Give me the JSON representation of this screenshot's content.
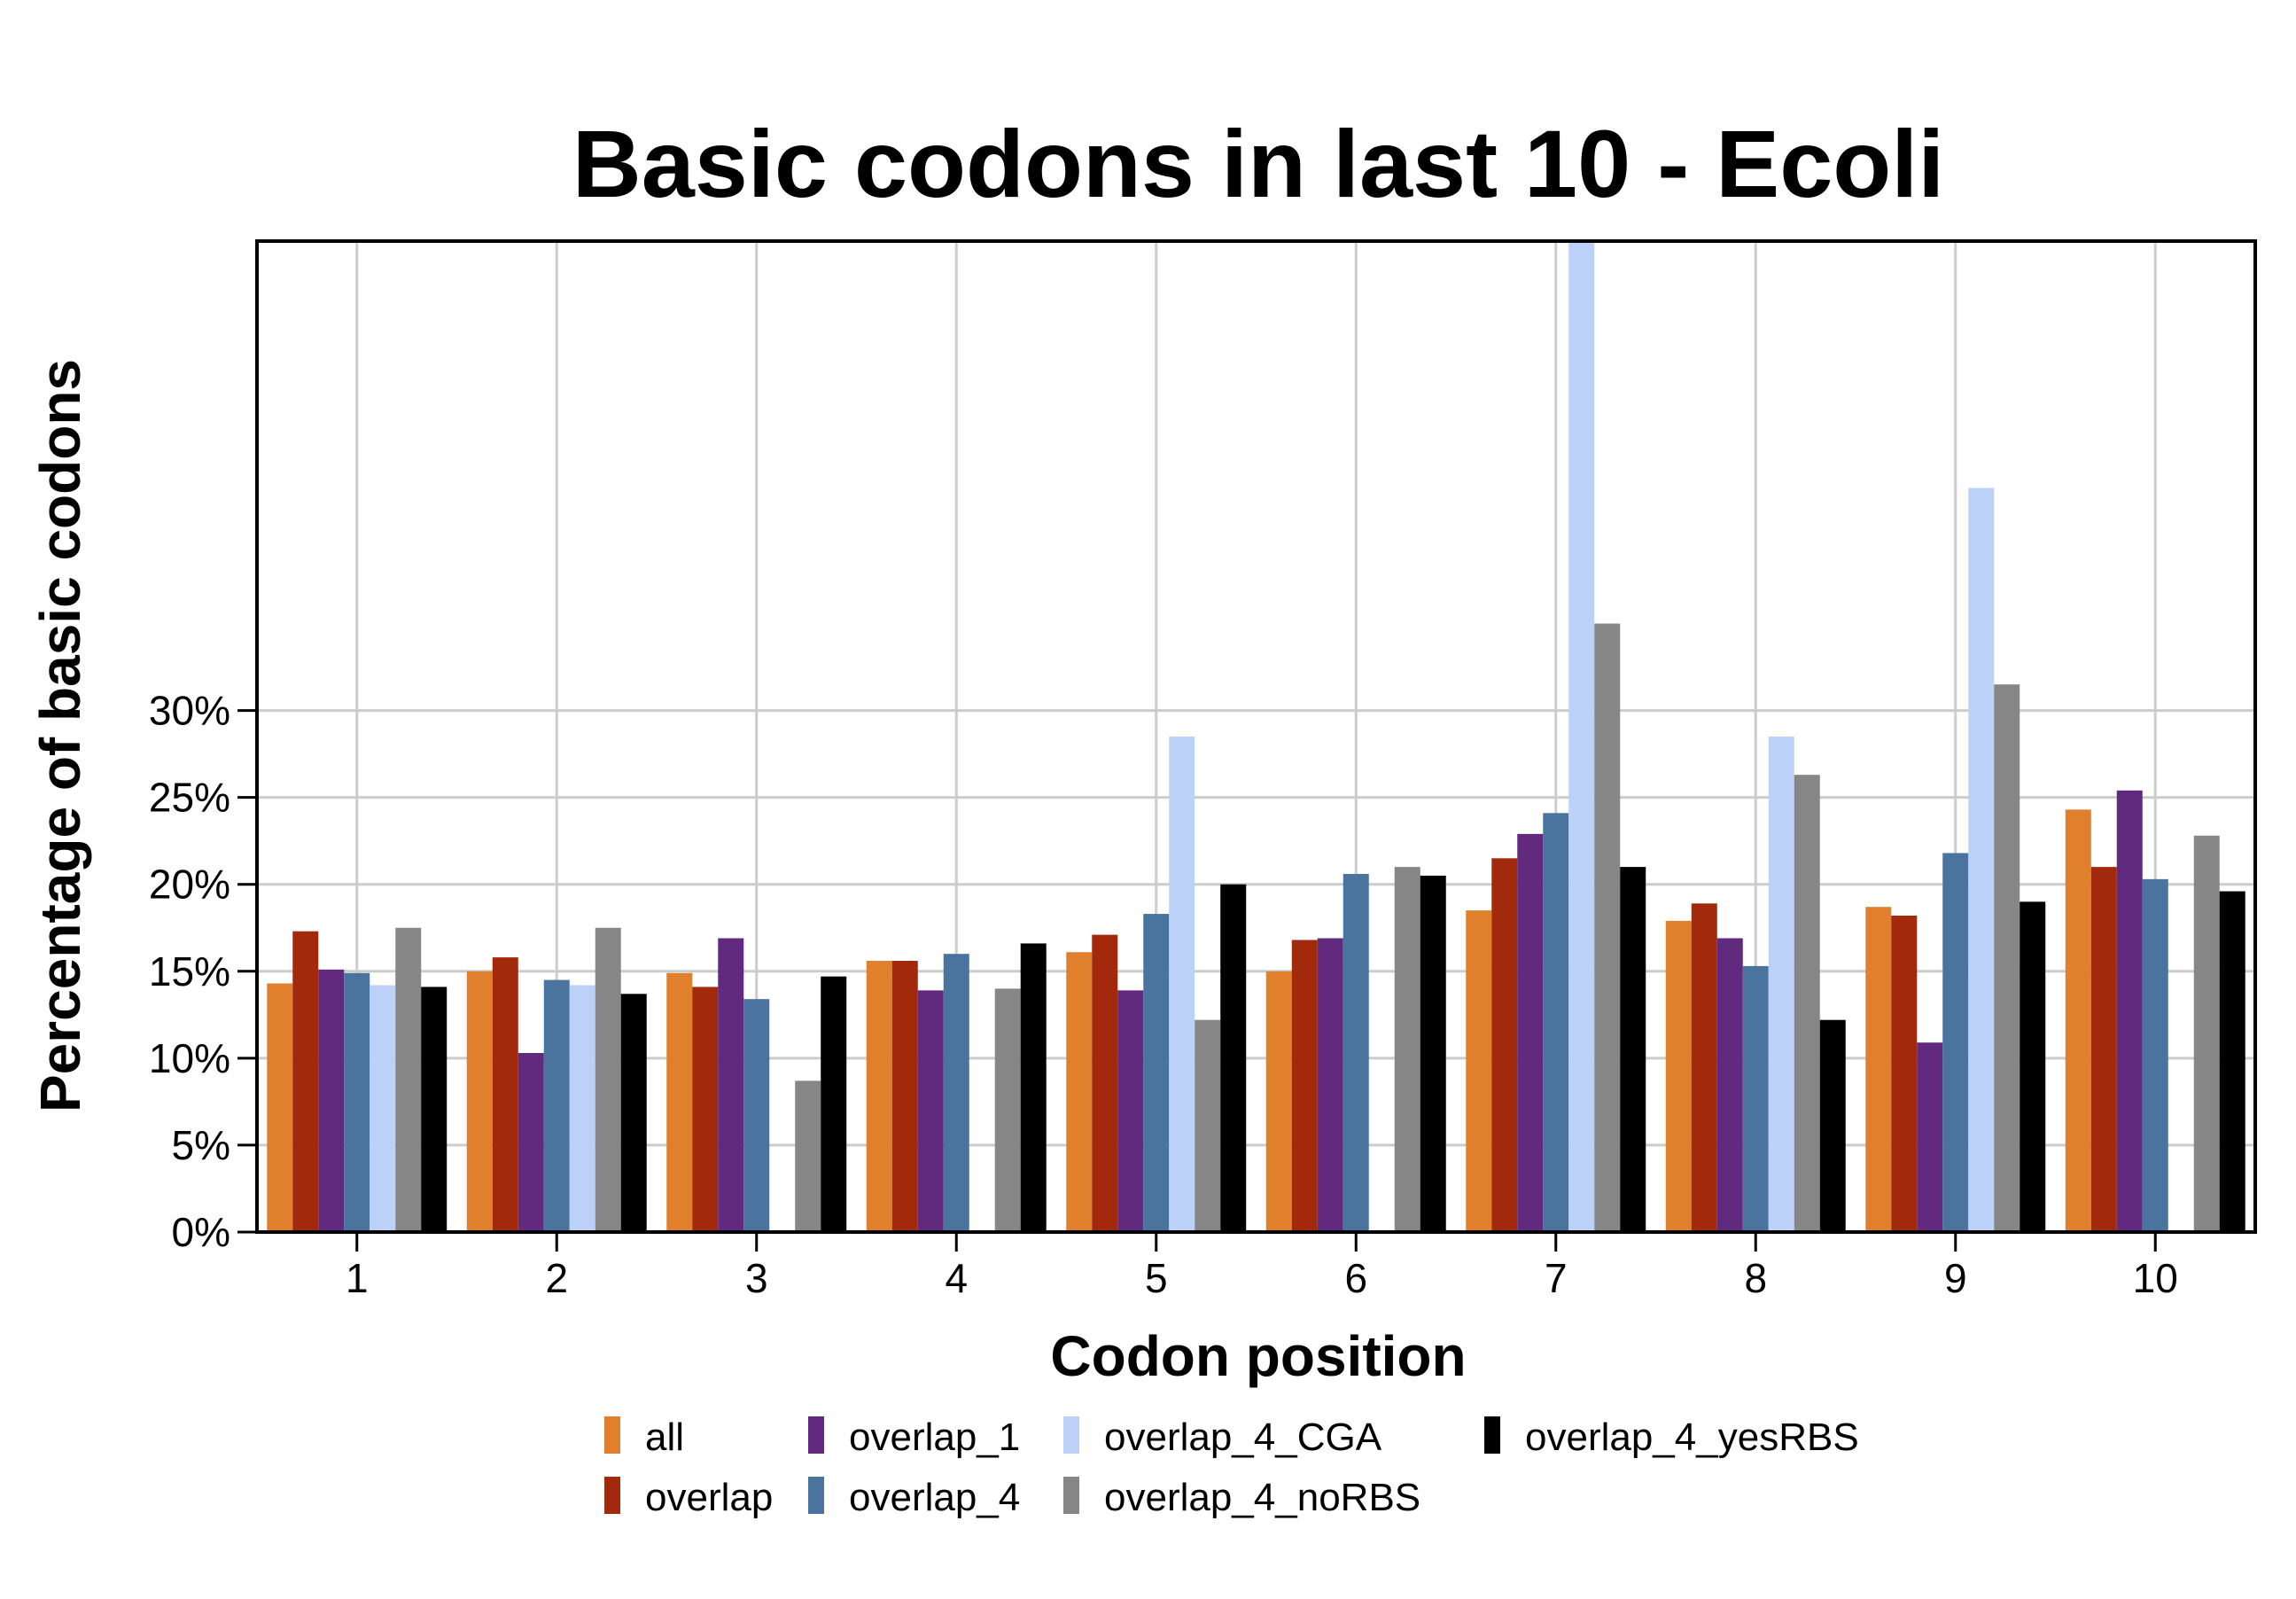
{
  "chart_data": {
    "type": "bar",
    "title": "Basic codons in last 10 - Ecoli",
    "xlabel": "Codon position",
    "ylabel": "Percentage of basic codons",
    "categories": [
      "1",
      "2",
      "3",
      "4",
      "5",
      "6",
      "7",
      "8",
      "9",
      "10"
    ],
    "y_ticks": [
      "0%",
      "5%",
      "10%",
      "15%",
      "20%",
      "25%",
      "30%"
    ],
    "y_tick_values": [
      0,
      5,
      10,
      15,
      20,
      25,
      30
    ],
    "ylim": [
      0,
      57
    ],
    "grid": true,
    "legend_position": "bottom",
    "series": [
      {
        "name": "all",
        "color": "#E07F2C",
        "values": [
          14.3,
          15.0,
          14.9,
          15.6,
          16.1,
          15.0,
          18.5,
          17.9,
          18.7,
          24.3
        ]
      },
      {
        "name": "overlap",
        "color": "#A3290D",
        "values": [
          17.3,
          15.8,
          14.1,
          15.6,
          17.1,
          16.8,
          21.5,
          18.9,
          18.2,
          21.0
        ]
      },
      {
        "name": "overlap_1",
        "color": "#622A7E",
        "values": [
          15.1,
          10.3,
          16.9,
          13.9,
          13.9,
          16.9,
          22.9,
          16.9,
          10.9,
          25.4
        ]
      },
      {
        "name": "overlap_4",
        "color": "#4A739E",
        "values": [
          14.9,
          14.5,
          13.4,
          16.0,
          18.3,
          20.6,
          24.1,
          15.3,
          21.8,
          20.3
        ]
      },
      {
        "name": "overlap_4_CGA",
        "color": "#BBD1F7",
        "values": [
          14.2,
          14.2,
          0,
          0,
          28.5,
          0,
          57.0,
          28.5,
          42.8,
          0
        ]
      },
      {
        "name": "overlap_4_noRBS",
        "color": "#868686",
        "values": [
          17.5,
          17.5,
          8.7,
          14.0,
          12.2,
          21.0,
          35.0,
          26.3,
          31.5,
          22.8
        ]
      },
      {
        "name": "overlap_4_yesRBS",
        "color": "#000000",
        "values": [
          14.1,
          13.7,
          14.7,
          16.6,
          20.0,
          20.5,
          21.0,
          12.2,
          19.0,
          19.6
        ]
      }
    ]
  }
}
